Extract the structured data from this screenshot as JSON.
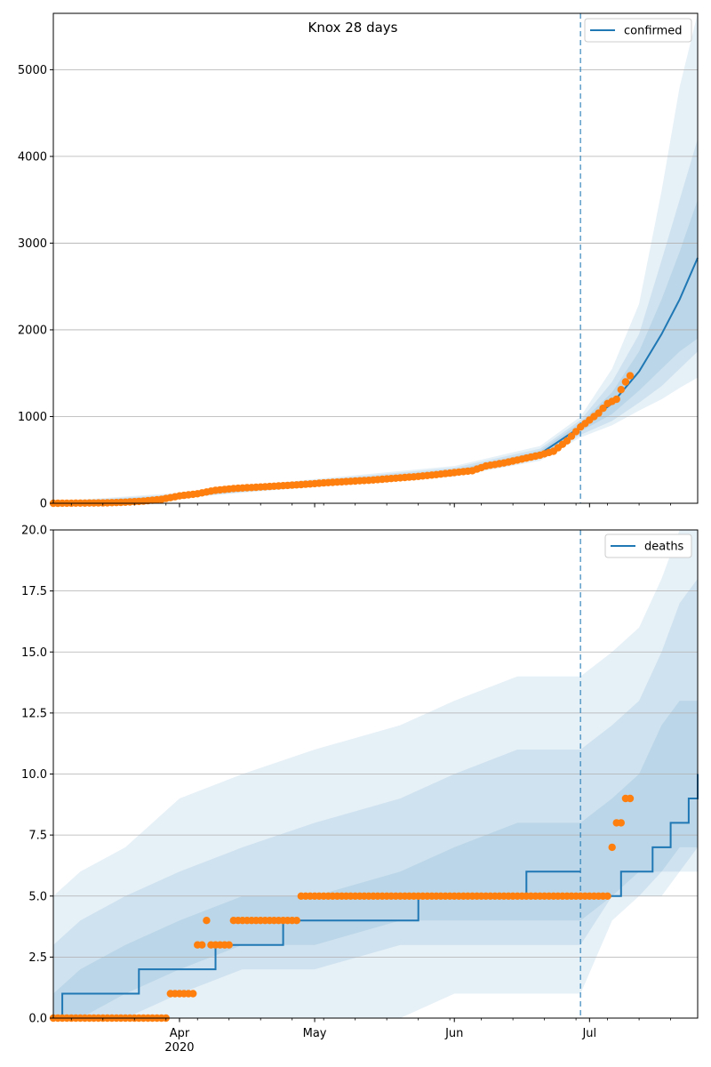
{
  "chart_data": [
    {
      "type": "line",
      "title": "Knox 28 days",
      "legend": {
        "label": "confirmed",
        "placement": "top-right"
      },
      "xlabel": "",
      "ylabel": "",
      "x_range": [
        "2020-03-04",
        "2020-07-25"
      ],
      "ylim": [
        0,
        5650
      ],
      "yticks": [
        0,
        1000,
        2000,
        3000,
        4000,
        5000
      ],
      "grid": "horizontal",
      "forecast_start": "2020-06-29",
      "colors": {
        "line": "#1f77b4",
        "observed": "#ff7f0e",
        "band": "#1f77b4"
      },
      "observed": [
        {
          "x": "2020-03-04",
          "y": 0
        },
        {
          "x": "2020-03-10",
          "y": 2
        },
        {
          "x": "2020-03-16",
          "y": 5
        },
        {
          "x": "2020-03-20",
          "y": 12
        },
        {
          "x": "2020-03-24",
          "y": 25
        },
        {
          "x": "2020-03-28",
          "y": 45
        },
        {
          "x": "2020-04-01",
          "y": 85
        },
        {
          "x": "2020-04-05",
          "y": 110
        },
        {
          "x": "2020-04-09",
          "y": 150
        },
        {
          "x": "2020-04-13",
          "y": 170
        },
        {
          "x": "2020-04-18",
          "y": 185
        },
        {
          "x": "2020-04-23",
          "y": 200
        },
        {
          "x": "2020-04-28",
          "y": 215
        },
        {
          "x": "2020-05-03",
          "y": 235
        },
        {
          "x": "2020-05-08",
          "y": 250
        },
        {
          "x": "2020-05-13",
          "y": 265
        },
        {
          "x": "2020-05-18",
          "y": 285
        },
        {
          "x": "2020-05-23",
          "y": 305
        },
        {
          "x": "2020-05-28",
          "y": 330
        },
        {
          "x": "2020-06-02",
          "y": 360
        },
        {
          "x": "2020-06-05",
          "y": 375
        },
        {
          "x": "2020-06-08",
          "y": 430
        },
        {
          "x": "2020-06-12",
          "y": 465
        },
        {
          "x": "2020-06-16",
          "y": 510
        },
        {
          "x": "2020-06-20",
          "y": 555
        },
        {
          "x": "2020-06-23",
          "y": 600
        },
        {
          "x": "2020-06-26",
          "y": 720
        },
        {
          "x": "2020-06-29",
          "y": 880
        },
        {
          "x": "2020-07-01",
          "y": 960
        },
        {
          "x": "2020-07-03",
          "y": 1040
        },
        {
          "x": "2020-07-05",
          "y": 1150
        },
        {
          "x": "2020-07-07",
          "y": 1200
        },
        {
          "x": "2020-07-08",
          "y": 1310
        },
        {
          "x": "2020-07-09",
          "y": 1400
        },
        {
          "x": "2020-07-10",
          "y": 1470
        }
      ],
      "median": [
        {
          "x": "2020-03-04",
          "y": 0
        },
        {
          "x": "2020-03-16",
          "y": 5
        },
        {
          "x": "2020-03-25",
          "y": 30
        },
        {
          "x": "2020-04-01",
          "y": 80
        },
        {
          "x": "2020-04-10",
          "y": 150
        },
        {
          "x": "2020-04-20",
          "y": 195
        },
        {
          "x": "2020-05-01",
          "y": 230
        },
        {
          "x": "2020-05-15",
          "y": 280
        },
        {
          "x": "2020-06-01",
          "y": 360
        },
        {
          "x": "2020-06-10",
          "y": 440
        },
        {
          "x": "2020-06-20",
          "y": 570
        },
        {
          "x": "2020-06-29",
          "y": 880
        },
        {
          "x": "2020-07-06",
          "y": 1150
        },
        {
          "x": "2020-07-12",
          "y": 1520
        },
        {
          "x": "2020-07-17",
          "y": 1950
        },
        {
          "x": "2020-07-21",
          "y": 2350
        },
        {
          "x": "2020-07-25",
          "y": 2830
        }
      ],
      "bands": [
        {
          "x": [
            "2020-03-04",
            "2020-04-01",
            "2020-05-01",
            "2020-06-01",
            "2020-06-20",
            "2020-06-29",
            "2020-07-06",
            "2020-07-12",
            "2020-07-17",
            "2020-07-21",
            "2020-07-25"
          ],
          "lower": [
            0,
            60,
            190,
            310,
            490,
            760,
            900,
            1070,
            1200,
            1330,
            1450
          ],
          "upper": [
            20,
            120,
            280,
            430,
            660,
            1000,
            1550,
            2300,
            3600,
            4800,
            5650
          ]
        },
        {
          "x": [
            "2020-03-04",
            "2020-04-01",
            "2020-05-01",
            "2020-06-01",
            "2020-06-20",
            "2020-06-29",
            "2020-07-06",
            "2020-07-12",
            "2020-07-17",
            "2020-07-21",
            "2020-07-25"
          ],
          "lower": [
            0,
            65,
            200,
            325,
            510,
            790,
            950,
            1160,
            1350,
            1550,
            1750
          ],
          "upper": [
            12,
            105,
            265,
            410,
            630,
            960,
            1400,
            1950,
            2800,
            3500,
            4200
          ]
        },
        {
          "x": [
            "2020-03-04",
            "2020-04-01",
            "2020-05-01",
            "2020-06-01",
            "2020-06-20",
            "2020-06-29",
            "2020-07-06",
            "2020-07-12",
            "2020-07-17",
            "2020-07-21",
            "2020-07-25"
          ],
          "lower": [
            0,
            72,
            210,
            340,
            535,
            830,
            1030,
            1300,
            1550,
            1750,
            1900
          ],
          "upper": [
            8,
            92,
            250,
            385,
            605,
            930,
            1280,
            1750,
            2350,
            2900,
            3500
          ]
        }
      ],
      "xticks": [
        {
          "x": "2020-04-01",
          "label": "Apr"
        },
        {
          "x": "2020-05-01",
          "label": "May"
        },
        {
          "x": "2020-06-01",
          "label": "Jun"
        },
        {
          "x": "2020-07-01",
          "label": "Jul"
        }
      ]
    },
    {
      "type": "line",
      "title": "",
      "legend": {
        "label": "deaths",
        "placement": "top-right"
      },
      "xlabel": "",
      "ylabel": "",
      "x_range": [
        "2020-03-04",
        "2020-07-25"
      ],
      "ylim": [
        0,
        20
      ],
      "yticks": [
        0.0,
        2.5,
        5.0,
        7.5,
        10.0,
        12.5,
        15.0,
        17.5,
        20.0
      ],
      "grid": "horizontal",
      "forecast_start": "2020-06-29",
      "colors": {
        "line": "#1f77b4",
        "observed": "#ff7f0e",
        "band": "#1f77b4"
      },
      "observed": [
        {
          "x": "2020-03-04",
          "y": 0
        },
        {
          "x": "2020-03-28",
          "y": 0
        },
        {
          "x": "2020-03-30",
          "y": 1
        },
        {
          "x": "2020-04-04",
          "y": 1
        },
        {
          "x": "2020-04-05",
          "y": 3
        },
        {
          "x": "2020-04-07",
          "y": 4
        },
        {
          "x": "2020-04-08",
          "y": 3
        },
        {
          "x": "2020-04-12",
          "y": 3
        },
        {
          "x": "2020-04-13",
          "y": 4
        },
        {
          "x": "2020-04-27",
          "y": 4
        },
        {
          "x": "2020-04-28",
          "y": 5
        },
        {
          "x": "2020-05-30",
          "y": 5
        },
        {
          "x": "2020-06-29",
          "y": 5
        },
        {
          "x": "2020-07-05",
          "y": 5
        },
        {
          "x": "2020-07-06",
          "y": 7
        },
        {
          "x": "2020-07-07",
          "y": 8
        },
        {
          "x": "2020-07-09",
          "y": 9
        },
        {
          "x": "2020-07-10",
          "y": 9
        }
      ],
      "median_steps": [
        {
          "x": "2020-03-04",
          "y": 0
        },
        {
          "x": "2020-03-06",
          "y": 1
        },
        {
          "x": "2020-03-23",
          "y": 2
        },
        {
          "x": "2020-04-09",
          "y": 3
        },
        {
          "x": "2020-04-24",
          "y": 4
        },
        {
          "x": "2020-05-24",
          "y": 5
        },
        {
          "x": "2020-06-17",
          "y": 6
        },
        {
          "x": "2020-06-29",
          "y": 6
        },
        {
          "x": "2020-07-08",
          "y": 6
        },
        {
          "x": "2020-07-15",
          "y": 7
        },
        {
          "x": "2020-07-19",
          "y": 8
        },
        {
          "x": "2020-07-23",
          "y": 9
        },
        {
          "x": "2020-07-25",
          "y": 10
        }
      ],
      "median_restart": {
        "x": "2020-06-29",
        "y": 5
      },
      "bands": [
        {
          "x": [
            "2020-03-04",
            "2020-03-10",
            "2020-03-20",
            "2020-04-01",
            "2020-04-15",
            "2020-05-01",
            "2020-05-20",
            "2020-06-01",
            "2020-06-15",
            "2020-06-29",
            "2020-07-06",
            "2020-07-12",
            "2020-07-17",
            "2020-07-21",
            "2020-07-25"
          ],
          "lower": [
            0,
            0,
            0,
            0,
            0,
            0,
            0,
            1,
            1,
            1,
            4,
            5,
            5,
            6,
            6
          ],
          "upper": [
            5,
            6,
            7,
            9,
            10,
            11,
            12,
            13,
            14,
            14,
            15,
            16,
            18,
            20,
            20
          ]
        },
        {
          "x": [
            "2020-03-04",
            "2020-03-10",
            "2020-03-20",
            "2020-04-01",
            "2020-04-15",
            "2020-05-01",
            "2020-05-20",
            "2020-06-01",
            "2020-06-15",
            "2020-06-29",
            "2020-07-06",
            "2020-07-12",
            "2020-07-17",
            "2020-07-21",
            "2020-07-25"
          ],
          "lower": [
            0,
            0,
            0,
            1,
            2,
            2,
            3,
            3,
            3,
            3,
            5,
            5,
            6,
            6,
            7
          ],
          "upper": [
            3,
            4,
            5,
            6,
            7,
            8,
            9,
            10,
            11,
            11,
            12,
            13,
            15,
            17,
            18
          ]
        },
        {
          "x": [
            "2020-03-04",
            "2020-03-10",
            "2020-03-20",
            "2020-04-01",
            "2020-04-15",
            "2020-05-01",
            "2020-05-20",
            "2020-06-01",
            "2020-06-15",
            "2020-06-29",
            "2020-07-06",
            "2020-07-12",
            "2020-07-17",
            "2020-07-21",
            "2020-07-25"
          ],
          "lower": [
            0,
            0,
            1,
            2,
            3,
            3,
            4,
            4,
            4,
            4,
            5,
            6,
            6,
            7,
            7
          ],
          "upper": [
            1,
            2,
            3,
            4,
            5,
            5,
            6,
            7,
            8,
            8,
            9,
            10,
            12,
            13,
            13
          ]
        }
      ],
      "xticks": [
        {
          "x": "2020-04-01",
          "label": "Apr",
          "sublabel": "2020"
        },
        {
          "x": "2020-05-01",
          "label": "May"
        },
        {
          "x": "2020-06-01",
          "label": "Jun"
        },
        {
          "x": "2020-07-01",
          "label": "Jul"
        }
      ]
    }
  ]
}
